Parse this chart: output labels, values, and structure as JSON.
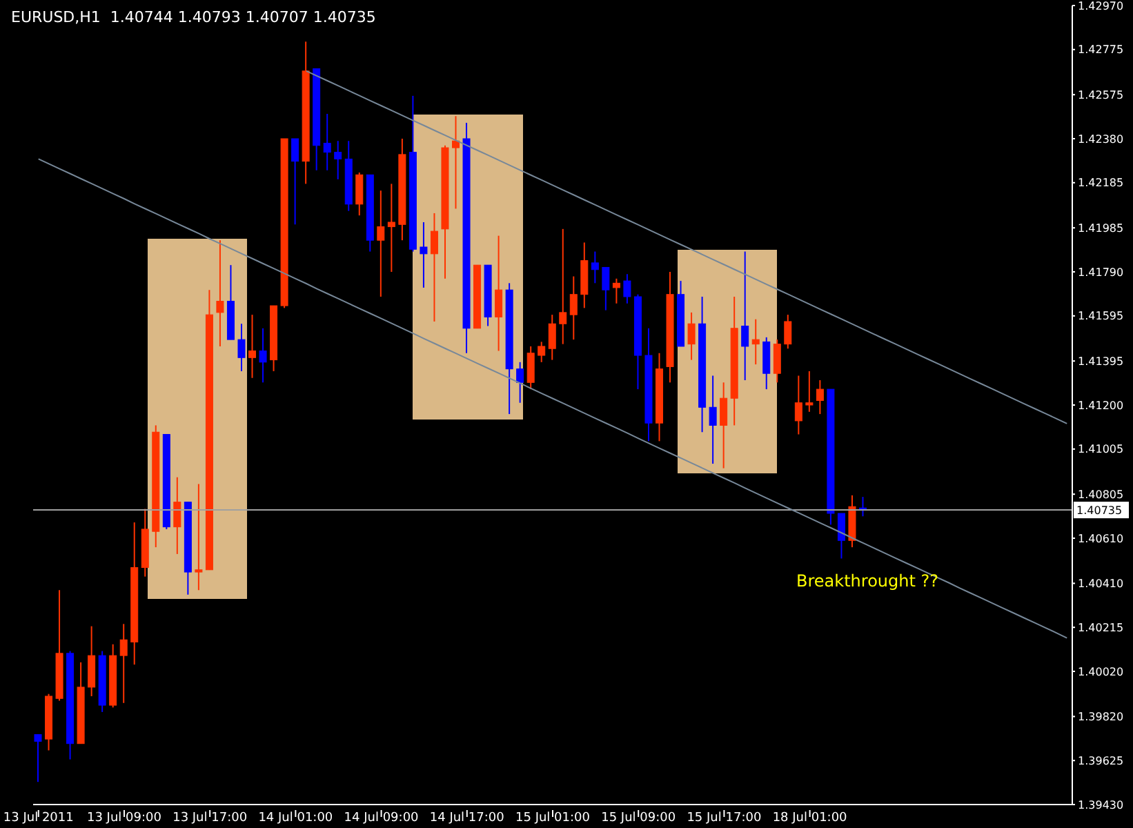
{
  "chart_data": {
    "type": "candlestick",
    "title": "EURUSD,H1  1.40744 1.40793 1.40707 1.40735",
    "categories": [
      "13 Jul 2011",
      null,
      null,
      null,
      null,
      null,
      null,
      null,
      "13 Jul 09:00",
      null,
      null,
      null,
      null,
      null,
      null,
      null,
      "13 Jul 17:00",
      null,
      null,
      null,
      null,
      null,
      null,
      null,
      "14 Jul 01:00",
      null,
      null,
      null,
      null,
      null,
      null,
      null,
      "14 Jul 09:00",
      null,
      null,
      null,
      null,
      null,
      null,
      null,
      "14 Jul 17:00",
      null,
      null,
      null,
      null,
      null,
      null,
      null,
      "15 Jul 01:00",
      null,
      null,
      null,
      null,
      null,
      null,
      null,
      "15 Jul 09:00",
      null,
      null,
      null,
      null,
      null,
      null,
      null,
      "15 Jul 17:00",
      null,
      null,
      null,
      null,
      null,
      null,
      null,
      "18 Jul 01:00",
      null,
      null,
      null,
      null,
      null,
      null,
      null,
      null,
      null,
      null,
      null,
      null,
      null,
      null,
      null,
      null,
      null,
      null,
      null,
      null,
      null,
      null,
      null,
      null
    ],
    "ohlc": [
      [
        1.3974,
        1.3974,
        1.3953,
        1.3971
      ],
      [
        1.3972,
        1.3992,
        1.3967,
        1.3991
      ],
      [
        1.399,
        1.4038,
        1.3989,
        1.401
      ],
      [
        1.401,
        1.4011,
        1.3963,
        1.397
      ],
      [
        1.397,
        1.4006,
        1.397,
        1.3995
      ],
      [
        1.3995,
        1.4022,
        1.3991,
        1.4009
      ],
      [
        1.4009,
        1.4011,
        1.3984,
        1.3987
      ],
      [
        1.3987,
        1.4014,
        1.3986,
        1.4009
      ],
      [
        1.4009,
        1.4023,
        1.3988,
        1.4016
      ],
      [
        1.4015,
        1.4068,
        1.4005,
        1.4048
      ],
      [
        1.4048,
        1.4074,
        1.4044,
        1.4065
      ],
      [
        1.4064,
        1.4111,
        1.4057,
        1.4108
      ],
      [
        1.4107,
        1.4107,
        1.4065,
        1.4066
      ],
      [
        1.4066,
        1.4088,
        1.4054,
        1.4077
      ],
      [
        1.4077,
        1.4077,
        1.4036,
        1.4046
      ],
      [
        1.4046,
        1.4085,
        1.4038,
        1.4047
      ],
      [
        1.4047,
        1.4171,
        1.4047,
        1.416
      ],
      [
        1.4161,
        1.4193,
        1.4146,
        1.4166
      ],
      [
        1.4166,
        1.4182,
        1.4149,
        1.4149
      ],
      [
        1.4149,
        1.4156,
        1.4135,
        1.4141
      ],
      [
        1.4141,
        1.416,
        1.4132,
        1.4144
      ],
      [
        1.4144,
        1.4154,
        1.413,
        1.4139
      ],
      [
        1.414,
        1.4164,
        1.4135,
        1.4164
      ],
      [
        1.4164,
        1.4238,
        1.4163,
        1.4238
      ],
      [
        1.4238,
        1.4238,
        1.42,
        1.4228
      ],
      [
        1.4228,
        1.4281,
        1.4218,
        1.4268
      ],
      [
        1.4269,
        1.4269,
        1.4224,
        1.4235
      ],
      [
        1.4236,
        1.4249,
        1.4224,
        1.4232
      ],
      [
        1.4232,
        1.4237,
        1.422,
        1.4229
      ],
      [
        1.4229,
        1.4237,
        1.4206,
        1.4209
      ],
      [
        1.4209,
        1.4223,
        1.4204,
        1.4222
      ],
      [
        1.4222,
        1.4222,
        1.4188,
        1.4193
      ],
      [
        1.4193,
        1.4215,
        1.4168,
        1.4199
      ],
      [
        1.4199,
        1.4218,
        1.4179,
        1.4201
      ],
      [
        1.42,
        1.4238,
        1.4193,
        1.4231
      ],
      [
        1.4232,
        1.4257,
        1.4188,
        1.4189
      ],
      [
        1.419,
        1.4201,
        1.4172,
        1.4187
      ],
      [
        1.4187,
        1.4205,
        1.4157,
        1.4197
      ],
      [
        1.4198,
        1.4235,
        1.4176,
        1.4234
      ],
      [
        1.4234,
        1.4248,
        1.4207,
        1.4237
      ],
      [
        1.4238,
        1.4245,
        1.4143,
        1.4154
      ],
      [
        1.4154,
        1.4182,
        1.4154,
        1.4182
      ],
      [
        1.4182,
        1.4182,
        1.4155,
        1.4159
      ],
      [
        1.4159,
        1.4195,
        1.4144,
        1.4171
      ],
      [
        1.4171,
        1.4174,
        1.4116,
        1.4136
      ],
      [
        1.4136,
        1.4139,
        1.4121,
        1.413
      ],
      [
        1.413,
        1.4146,
        1.4127,
        1.4143
      ],
      [
        1.4142,
        1.4148,
        1.4139,
        1.4146
      ],
      [
        1.4145,
        1.416,
        1.414,
        1.4156
      ],
      [
        1.4156,
        1.4198,
        1.4147,
        1.4161
      ],
      [
        1.416,
        1.4177,
        1.4149,
        1.4169
      ],
      [
        1.4169,
        1.4192,
        1.4163,
        1.4184
      ],
      [
        1.4183,
        1.4188,
        1.4174,
        1.418
      ],
      [
        1.4181,
        1.4181,
        1.4162,
        1.4171
      ],
      [
        1.4172,
        1.4176,
        1.4165,
        1.4174
      ],
      [
        1.4175,
        1.4178,
        1.4165,
        1.4168
      ],
      [
        1.4168,
        1.4169,
        1.4127,
        1.4142
      ],
      [
        1.4142,
        1.4154,
        1.4104,
        1.4112
      ],
      [
        1.4112,
        1.4143,
        1.4104,
        1.4136
      ],
      [
        1.4137,
        1.4179,
        1.413,
        1.4169
      ],
      [
        1.4169,
        1.4175,
        1.4146,
        1.4146
      ],
      [
        1.4147,
        1.4161,
        1.414,
        1.4156
      ],
      [
        1.4156,
        1.4168,
        1.4108,
        1.4119
      ],
      [
        1.4119,
        1.4133,
        1.4094,
        1.4111
      ],
      [
        1.4111,
        1.413,
        1.4092,
        1.4123
      ],
      [
        1.4123,
        1.4168,
        1.4111,
        1.4154
      ],
      [
        1.4155,
        1.4188,
        1.4131,
        1.4146
      ],
      [
        1.4147,
        1.4158,
        1.4138,
        1.4149
      ],
      [
        1.4148,
        1.415,
        1.4127,
        1.4134
      ],
      [
        1.4134,
        1.4149,
        1.413,
        1.4147
      ],
      [
        1.4147,
        1.416,
        1.4145,
        1.4157
      ],
      [
        1.4113,
        1.4133,
        1.4107,
        1.4121
      ],
      [
        1.412,
        1.4135,
        1.4117,
        1.4121
      ],
      [
        1.4122,
        1.4131,
        1.4116,
        1.4127
      ],
      [
        1.4127,
        1.4127,
        1.4067,
        1.4072
      ],
      [
        1.4072,
        1.4072,
        1.4052,
        1.406
      ],
      [
        1.406,
        1.408,
        1.4057,
        1.4075
      ],
      [
        1.40744,
        1.40793,
        1.40707,
        1.40735
      ],
      null,
      null,
      null,
      null,
      null,
      null,
      null,
      null,
      null,
      null,
      null,
      null,
      null,
      null,
      null,
      null,
      null,
      null,
      null
    ],
    "colors": [
      "#0000ff",
      "#ff3300",
      "#ff3300",
      "#0000ff",
      "#ff3300",
      "#ff3300",
      "#0000ff",
      "#ff3300",
      "#ff3300",
      "#ff3300",
      "#ff3300",
      "#ff3300",
      "#0000ff",
      "#ff3300",
      "#0000ff",
      "#ff3300",
      "#ff3300",
      "#ff3300",
      "#0000ff",
      "#0000ff",
      "#ff3300",
      "#0000ff",
      "#ff3300",
      "#ff3300",
      "#0000ff",
      "#ff3300",
      "#0000ff",
      "#0000ff",
      "#0000ff",
      "#0000ff",
      "#ff3300",
      "#0000ff",
      "#ff3300",
      "#ff3300",
      "#ff3300",
      "#0000ff",
      "#0000ff",
      "#ff3300",
      "#ff3300",
      "#ff3300",
      "#0000ff",
      "#ff3300",
      "#0000ff",
      "#ff3300",
      "#0000ff",
      "#0000ff",
      "#ff3300",
      "#ff3300",
      "#ff3300",
      "#ff3300",
      "#ff3300",
      "#ff3300",
      "#0000ff",
      "#0000ff",
      "#ff3300",
      "#0000ff",
      "#0000ff",
      "#0000ff",
      "#ff3300",
      "#ff3300",
      "#0000ff",
      "#ff3300",
      "#0000ff",
      "#0000ff",
      "#ff3300",
      "#ff3300",
      "#0000ff",
      "#ff3300",
      "#0000ff",
      "#ff3300",
      "#ff3300",
      "#ff3300",
      "#ff3300",
      "#ff3300",
      "#0000ff",
      "#0000ff",
      "#ff3300",
      "#0000ff",
      null,
      null,
      null,
      null,
      null,
      null,
      null,
      null,
      null,
      null,
      null,
      null,
      null,
      null,
      null,
      null,
      null,
      null,
      null
    ],
    "series": [
      {
        "type": "line",
        "color": "#778899",
        "values": [
          null,
          null,
          null,
          null,
          null,
          null,
          null,
          null,
          null,
          null,
          null,
          null,
          null,
          null,
          null,
          null,
          null,
          null,
          null,
          null,
          null,
          null,
          null,
          null,
          null,
          1.4268,
          1.42658,
          1.42636,
          1.42614,
          1.42592,
          1.4257,
          1.42548,
          1.42526,
          1.42504,
          1.42482,
          1.4246,
          1.42438,
          1.42416,
          1.42394,
          1.42372,
          1.4235,
          1.42328,
          1.42306,
          1.42284,
          1.42262,
          1.4224,
          1.42218,
          1.42196,
          1.42174,
          1.42152,
          1.4213,
          1.42108,
          1.42086,
          1.42064,
          1.42042,
          1.4202,
          1.41998,
          1.41976,
          1.41954,
          1.41932,
          1.4191,
          1.41888,
          1.41866,
          1.41844,
          1.41822,
          1.418,
          1.41778,
          1.41756,
          1.41734,
          1.41712,
          1.4169,
          1.41668,
          1.41646,
          1.41624,
          1.41602,
          1.4158,
          1.41558,
          1.41536,
          1.41514,
          1.41492,
          1.4147,
          1.41448,
          1.41426,
          1.41404,
          1.41382,
          1.4136,
          1.41338,
          1.41316,
          1.41294,
          1.41272,
          1.4125,
          1.41228,
          1.41206,
          1.41184,
          1.41162,
          1.4114,
          1.41118
        ]
      },
      {
        "type": "line",
        "color": "#778899",
        "values": [
          1.4229,
          1.42268,
          1.42246,
          1.42224,
          1.42202,
          1.4218,
          1.42158,
          1.42136,
          1.42114,
          1.42091,
          1.42069,
          1.42047,
          1.42025,
          1.42003,
          1.41981,
          1.41959,
          1.41936,
          1.41914,
          1.41892,
          1.4187,
          1.41848,
          1.41826,
          1.41804,
          1.41782,
          1.4176,
          1.41738,
          1.41715,
          1.41693,
          1.41671,
          1.41649,
          1.41627,
          1.41605,
          1.41583,
          1.41561,
          1.41539,
          1.41517,
          1.41494,
          1.41472,
          1.4145,
          1.41428,
          1.41406,
          1.41384,
          1.41362,
          1.4134,
          1.41318,
          1.41296,
          1.41273,
          1.41251,
          1.41229,
          1.41207,
          1.41185,
          1.41163,
          1.41141,
          1.41119,
          1.41097,
          1.41075,
          1.41052,
          1.4103,
          1.41008,
          1.40986,
          1.40964,
          1.40942,
          1.4092,
          1.40898,
          1.40876,
          1.40854,
          1.40831,
          1.40809,
          1.40787,
          1.40765,
          1.40743,
          1.40721,
          1.40699,
          1.40677,
          1.40655,
          1.40633,
          1.4061,
          1.40588,
          1.40566,
          1.40544,
          1.40522,
          1.405,
          1.40478,
          1.40456,
          1.40434,
          1.40412,
          1.40389,
          1.40367,
          1.40345,
          1.40323,
          1.40301,
          1.40279,
          1.40257,
          1.40235,
          1.40213,
          1.40191,
          1.40168
        ]
      }
    ],
    "ylim": [
      1.3943,
      1.4297
    ],
    "yticks": [
      {
        "value": 1.4297,
        "label": "1.42970"
      },
      {
        "value": 1.42775,
        "label": "1.42775"
      },
      {
        "value": 1.42575,
        "label": "1.42575"
      },
      {
        "value": 1.4238,
        "label": "1.42380"
      },
      {
        "value": 1.42185,
        "label": "1.42185"
      },
      {
        "value": 1.41985,
        "label": "1.41985"
      },
      {
        "value": 1.4179,
        "label": "1.41790"
      },
      {
        "value": 1.41595,
        "label": "1.41595"
      },
      {
        "value": 1.41395,
        "label": "1.41395"
      },
      {
        "value": 1.412,
        "label": "1.41200"
      },
      {
        "value": 1.41005,
        "label": "1.41005"
      },
      {
        "value": 1.40805,
        "label": "1.40805"
      },
      {
        "value": 1.4061,
        "label": "1.40610"
      },
      {
        "value": 1.4041,
        "label": "1.40410"
      },
      {
        "value": 1.40215,
        "label": "1.40215"
      },
      {
        "value": 1.4002,
        "label": "1.40020"
      },
      {
        "value": 1.3982,
        "label": "1.39820"
      },
      {
        "value": 1.39625,
        "label": "1.39625"
      },
      {
        "value": 1.3943,
        "label": "1.39430"
      }
    ],
    "ref_lines": [
      {
        "axis": "y",
        "value": 1.40735,
        "label": "1.40735",
        "color": "#a0a0a0"
      }
    ],
    "annotations": [
      "Breakthrought ??"
    ]
  }
}
